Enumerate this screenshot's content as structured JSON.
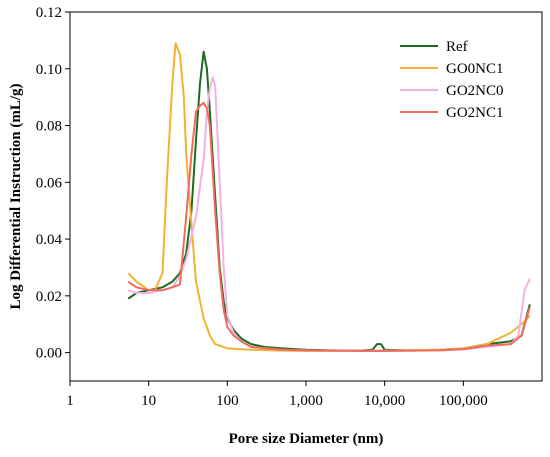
{
  "chart_data": {
    "type": "line",
    "xlabel": "Pore size Diameter (nm)",
    "ylabel": "Log Differential Instruction (mL/g)",
    "xscale": "log",
    "xlim": [
      1,
      1000000
    ],
    "ylim": [
      -0.01,
      0.12
    ],
    "x_ticks": [
      1,
      10,
      100,
      1000,
      10000,
      100000
    ],
    "x_tick_labels": [
      "1",
      "10",
      "100",
      "1,000",
      "10,000",
      "100,000"
    ],
    "y_ticks": [
      0.0,
      0.02,
      0.04,
      0.06,
      0.08,
      0.1,
      0.12
    ],
    "y_tick_labels": [
      "0.00",
      "0.02",
      "0.04",
      "0.06",
      "0.08",
      "0.10",
      "0.12"
    ],
    "grid": false,
    "legend_position": "top-right",
    "series": [
      {
        "name": "Ref",
        "color": "#1e6b1e",
        "points": [
          [
            5.5,
            0.019
          ],
          [
            7,
            0.021
          ],
          [
            10,
            0.022
          ],
          [
            15,
            0.023
          ],
          [
            20,
            0.025
          ],
          [
            25,
            0.028
          ],
          [
            30,
            0.035
          ],
          [
            35,
            0.05
          ],
          [
            40,
            0.075
          ],
          [
            45,
            0.095
          ],
          [
            50,
            0.106
          ],
          [
            55,
            0.1
          ],
          [
            60,
            0.085
          ],
          [
            70,
            0.055
          ],
          [
            80,
            0.03
          ],
          [
            90,
            0.018
          ],
          [
            100,
            0.012
          ],
          [
            120,
            0.008
          ],
          [
            150,
            0.005
          ],
          [
            200,
            0.003
          ],
          [
            300,
            0.002
          ],
          [
            500,
            0.0015
          ],
          [
            1000,
            0.001
          ],
          [
            2000,
            0.0008
          ],
          [
            5000,
            0.0007
          ],
          [
            7000,
            0.001
          ],
          [
            8000,
            0.003
          ],
          [
            9000,
            0.003
          ],
          [
            10000,
            0.001
          ],
          [
            20000,
            0.0008
          ],
          [
            50000,
            0.001
          ],
          [
            100000,
            0.0015
          ],
          [
            200000,
            0.003
          ],
          [
            400000,
            0.004
          ],
          [
            550000,
            0.006
          ],
          [
            700000,
            0.017
          ]
        ]
      },
      {
        "name": "GO0NC1",
        "color": "#f2b233",
        "points": [
          [
            5.5,
            0.028
          ],
          [
            7,
            0.025
          ],
          [
            10,
            0.022
          ],
          [
            12,
            0.022
          ],
          [
            15,
            0.028
          ],
          [
            17,
            0.06
          ],
          [
            20,
            0.095
          ],
          [
            22,
            0.109
          ],
          [
            25,
            0.105
          ],
          [
            28,
            0.09
          ],
          [
            30,
            0.07
          ],
          [
            35,
            0.045
          ],
          [
            40,
            0.025
          ],
          [
            50,
            0.012
          ],
          [
            60,
            0.006
          ],
          [
            70,
            0.003
          ],
          [
            100,
            0.0015
          ],
          [
            200,
            0.001
          ],
          [
            500,
            0.0007
          ],
          [
            1000,
            0.0006
          ],
          [
            5000,
            0.0006
          ],
          [
            10000,
            0.0007
          ],
          [
            50000,
            0.001
          ],
          [
            100000,
            0.0015
          ],
          [
            200000,
            0.003
          ],
          [
            400000,
            0.007
          ],
          [
            550000,
            0.01
          ],
          [
            700000,
            0.013
          ]
        ]
      },
      {
        "name": "GO2NC0",
        "color": "#f0b3e4",
        "points": [
          [
            5.5,
            0.022
          ],
          [
            7,
            0.021
          ],
          [
            10,
            0.021
          ],
          [
            15,
            0.022
          ],
          [
            20,
            0.023
          ],
          [
            25,
            0.027
          ],
          [
            30,
            0.033
          ],
          [
            40,
            0.048
          ],
          [
            50,
            0.068
          ],
          [
            55,
            0.085
          ],
          [
            60,
            0.093
          ],
          [
            65,
            0.097
          ],
          [
            70,
            0.094
          ],
          [
            80,
            0.06
          ],
          [
            90,
            0.03
          ],
          [
            100,
            0.013
          ],
          [
            120,
            0.007
          ],
          [
            150,
            0.004
          ],
          [
            200,
            0.002
          ],
          [
            500,
            0.001
          ],
          [
            1000,
            0.0008
          ],
          [
            5000,
            0.0006
          ],
          [
            10000,
            0.0006
          ],
          [
            50000,
            0.0008
          ],
          [
            100000,
            0.0012
          ],
          [
            200000,
            0.002
          ],
          [
            400000,
            0.003
          ],
          [
            500000,
            0.006
          ],
          [
            600000,
            0.022
          ],
          [
            700000,
            0.026
          ]
        ]
      },
      {
        "name": "GO2NC1",
        "color": "#f06a5e",
        "points": [
          [
            5.5,
            0.025
          ],
          [
            7,
            0.023
          ],
          [
            10,
            0.022
          ],
          [
            15,
            0.022
          ],
          [
            20,
            0.023
          ],
          [
            25,
            0.024
          ],
          [
            30,
            0.048
          ],
          [
            35,
            0.07
          ],
          [
            40,
            0.085
          ],
          [
            45,
            0.087
          ],
          [
            50,
            0.088
          ],
          [
            55,
            0.086
          ],
          [
            60,
            0.08
          ],
          [
            70,
            0.05
          ],
          [
            80,
            0.028
          ],
          [
            90,
            0.015
          ],
          [
            100,
            0.009
          ],
          [
            120,
            0.006
          ],
          [
            150,
            0.004
          ],
          [
            200,
            0.002
          ],
          [
            500,
            0.001
          ],
          [
            1000,
            0.0008
          ],
          [
            5000,
            0.0006
          ],
          [
            10000,
            0.0006
          ],
          [
            50000,
            0.0008
          ],
          [
            100000,
            0.0012
          ],
          [
            200000,
            0.0025
          ],
          [
            400000,
            0.003
          ],
          [
            550000,
            0.006
          ],
          [
            700000,
            0.016
          ]
        ]
      }
    ]
  }
}
